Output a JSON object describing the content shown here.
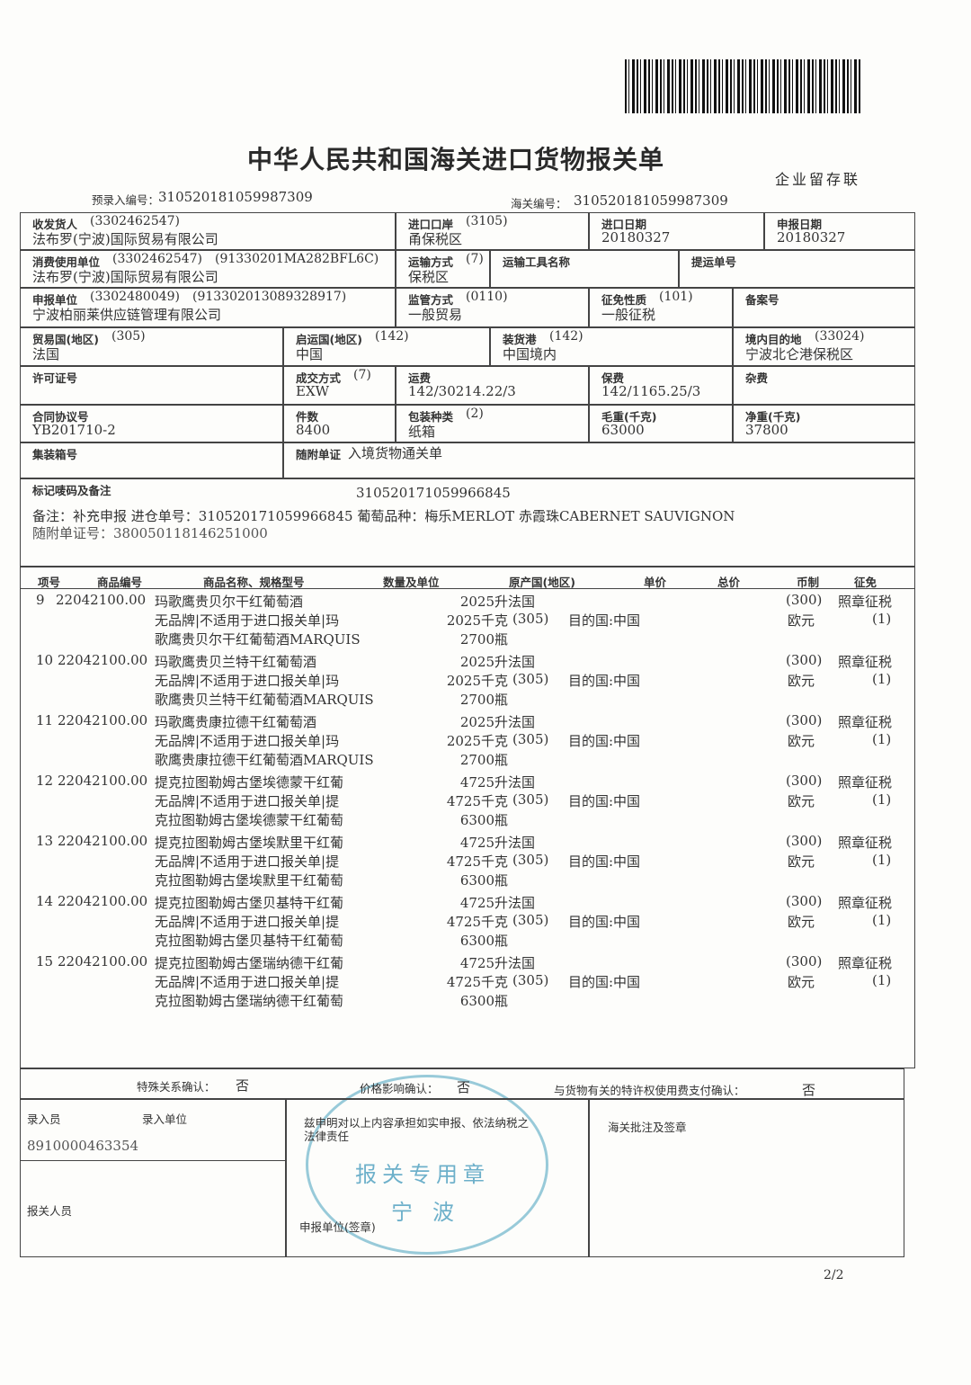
{
  "header": {
    "title": "中华人民共和国海关进口货物报关单",
    "copy_label": "企业留存联",
    "pre_entry_label": "预录入编号：",
    "pre_entry_no": "310520181059987309",
    "customs_label": "海关编号：",
    "customs_no": "310520181059987309"
  },
  "fields": {
    "consignee": {
      "label": "收发货人",
      "code": "(3302462547)",
      "value": "法布罗(宁波)国际贸易有限公司"
    },
    "port": {
      "label": "进口口岸",
      "code": "(3105)",
      "value": "甬保税区"
    },
    "import_date": {
      "label": "进口日期",
      "value": "20180327"
    },
    "declare_date": {
      "label": "申报日期",
      "value": "20180327"
    },
    "consumer": {
      "label": "消费使用单位",
      "code": "(3302462547)",
      "code2": "(91330201MA282BFL6C)",
      "value": "法布罗(宁波)国际贸易有限公司"
    },
    "transport_mode": {
      "label": "运输方式",
      "code": "(7)",
      "value": "保税区"
    },
    "transport_tool": {
      "label": "运输工具名称"
    },
    "bill_no": {
      "label": "提运单号"
    },
    "declarant": {
      "label": "申报单位",
      "code": "(3302480049)",
      "code2": "(913302013089328917)",
      "value": "宁波柏丽莱供应链管理有限公司"
    },
    "supervision": {
      "label": "监管方式",
      "code": "(0110)",
      "value": "一般贸易"
    },
    "levy": {
      "label": "征免性质",
      "code": "(101)",
      "value": "一般征税"
    },
    "record_no": {
      "label": "备案号"
    },
    "trade_country": {
      "label": "贸易国(地区)",
      "code": "(305)",
      "value": "法国"
    },
    "origin_country": {
      "label": "启运国(地区)",
      "code": "(142)",
      "value": "中国"
    },
    "loading_port": {
      "label": "装货港",
      "code": "(142)",
      "value": "中国境内"
    },
    "destination": {
      "label": "境内目的地",
      "code": "(33024)",
      "value": "宁波北仑港保税区"
    },
    "license": {
      "label": "许可证号"
    },
    "deal_mode": {
      "label": "成交方式",
      "code": "(7)",
      "value": "EXW"
    },
    "freight": {
      "label": "运费",
      "value": "142/30214.22/3"
    },
    "insurance": {
      "label": "保费",
      "value": "142/1165.25/3"
    },
    "misc": {
      "label": "杂费"
    },
    "contract": {
      "label": "合同协议号",
      "value": "YB201710-2"
    },
    "pieces": {
      "label": "件数",
      "value": "8400"
    },
    "package": {
      "label": "包装种类",
      "code": "(2)",
      "value": "纸箱"
    },
    "gross": {
      "label": "毛重(千克)",
      "value": "63000"
    },
    "net": {
      "label": "净重(千克)",
      "value": "37800"
    },
    "container": {
      "label": "集装箱号"
    },
    "attached_doc": {
      "label": "随附单证",
      "value": "入境货物通关单"
    }
  },
  "marks": {
    "label": "标记唛码及备注",
    "value": "310520171059966845",
    "remark": "备注：补充申报 进仓单号：310520171059966845 葡萄品种：梅乐MERLOT 赤霞珠CABERNET SAUVIGNON",
    "cert": "随附单证号：380050118146251000"
  },
  "items_header": [
    "项号",
    "商品编号",
    "商品名称、规格型号",
    "数量及单位",
    "原产国(地区)",
    "单价",
    "总价",
    "币制",
    "征免"
  ],
  "items": [
    {
      "no": "9",
      "code": "22042100.00",
      "name": [
        "玛歌鹰贵贝尔干红葡萄酒",
        "无品牌|不适用于进口报关单|玛",
        "歌鹰贵贝尔干红葡萄酒MARQUIS"
      ],
      "qty": [
        "2025升",
        "2025千克",
        "2700瓶"
      ],
      "origin": "法国",
      "origin_code": "(305)",
      "dest": "目的国:中国",
      "currency_code": "(300)",
      "currency": "欧元",
      "levy": "照章征税",
      "levy_code": "(1)"
    },
    {
      "no": "10",
      "code": "22042100.00",
      "name": [
        "玛歌鹰贵贝兰特干红葡萄酒",
        "无品牌|不适用于进口报关单|玛",
        "歌鹰贵贝兰特干红葡萄酒MARQUIS"
      ],
      "qty": [
        "2025升",
        "2025千克",
        "2700瓶"
      ],
      "origin": "法国",
      "origin_code": "(305)",
      "dest": "目的国:中国",
      "currency_code": "(300)",
      "currency": "欧元",
      "levy": "照章征税",
      "levy_code": "(1)"
    },
    {
      "no": "11",
      "code": "22042100.00",
      "name": [
        "玛歌鹰贵康拉德干红葡萄酒",
        "无品牌|不适用于进口报关单|玛",
        "歌鹰贵康拉德干红葡萄酒MARQUIS"
      ],
      "qty": [
        "2025升",
        "2025千克",
        "2700瓶"
      ],
      "origin": "法国",
      "origin_code": "(305)",
      "dest": "目的国:中国",
      "currency_code": "(300)",
      "currency": "欧元",
      "levy": "照章征税",
      "levy_code": "(1)"
    },
    {
      "no": "12",
      "code": "22042100.00",
      "name": [
        "提克拉图勒姆古堡埃德蒙干红葡",
        "无品牌|不适用于进口报关单|提",
        "克拉图勒姆古堡埃德蒙干红葡萄"
      ],
      "qty": [
        "4725升",
        "4725千克",
        "6300瓶"
      ],
      "origin": "法国",
      "origin_code": "(305)",
      "dest": "目的国:中国",
      "currency_code": "(300)",
      "currency": "欧元",
      "levy": "照章征税",
      "levy_code": "(1)"
    },
    {
      "no": "13",
      "code": "22042100.00",
      "name": [
        "提克拉图勒姆古堡埃默里干红葡",
        "无品牌|不适用于进口报关单|提",
        "克拉图勒姆古堡埃默里干红葡萄"
      ],
      "qty": [
        "4725升",
        "4725千克",
        "6300瓶"
      ],
      "origin": "法国",
      "origin_code": "(305)",
      "dest": "目的国:中国",
      "currency_code": "(300)",
      "currency": "欧元",
      "levy": "照章征税",
      "levy_code": "(1)"
    },
    {
      "no": "14",
      "code": "22042100.00",
      "name": [
        "提克拉图勒姆古堡贝基特干红葡",
        "无品牌|不适用于进口报关单|提",
        "克拉图勒姆古堡贝基特干红葡萄"
      ],
      "qty": [
        "4725升",
        "4725千克",
        "6300瓶"
      ],
      "origin": "法国",
      "origin_code": "(305)",
      "dest": "目的国:中国",
      "currency_code": "(300)",
      "currency": "欧元",
      "levy": "照章征税",
      "levy_code": "(1)"
    },
    {
      "no": "15",
      "code": "22042100.00",
      "name": [
        "提克拉图勒姆古堡瑞纳德干红葡",
        "无品牌|不适用于进口报关单|提",
        "克拉图勒姆古堡瑞纳德干红葡萄"
      ],
      "qty": [
        "4725升",
        "4725千克",
        "6300瓶"
      ],
      "origin": "法国",
      "origin_code": "(305)",
      "dest": "目的国:中国",
      "currency_code": "(300)",
      "currency": "欧元",
      "levy": "照章征税",
      "levy_code": "(1)"
    }
  ],
  "footer": {
    "special_label": "特殊关系确认：",
    "special": "否",
    "price_label": "价格影响确认：",
    "price": "否",
    "royalty_label": "与货物有关的特许权使用费支付确认：",
    "royalty": "否",
    "entry_clerk": "录入员",
    "entry_unit": "录入单位",
    "entry_no": "8910000463354",
    "declaration": [
      "兹申明对以上内容承担如实申报、依法纳税之",
      "法律责任"
    ],
    "customs_note": "海关批注及签章",
    "broker": "报关人员",
    "sign": "申报单位(签章)",
    "stamp": [
      "报关专用章",
      "宁波"
    ],
    "page": "2/2"
  }
}
